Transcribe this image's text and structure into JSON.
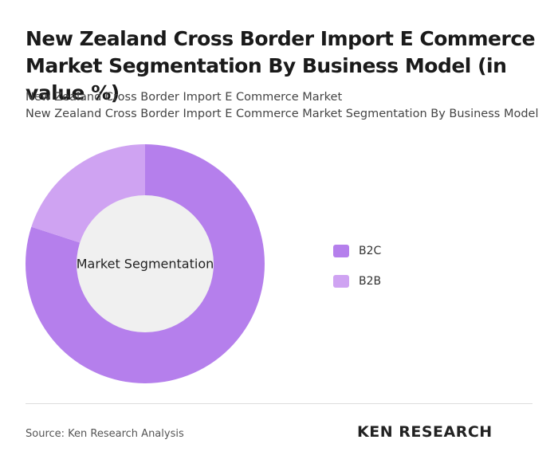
{
  "chart_data": {
    "type": "donut",
    "title": "New Zealand Cross Border Import E Commerce Market Segmentation By Business Model (in value %)",
    "subtitle": [
      "New Zealand Cross Border Import E Commerce Market",
      "New Zealand Cross Border Import E Commerce Market Segmentation By Business Model"
    ],
    "center_label": "Market Segmentation",
    "categories": [
      "B2C",
      "B2B"
    ],
    "values": [
      80,
      20
    ],
    "colors": [
      "#b57fec",
      "#cfa3f2"
    ]
  },
  "footer": {
    "source": "Source: Ken Research Analysis",
    "logo": "KEN RESEARCH"
  }
}
